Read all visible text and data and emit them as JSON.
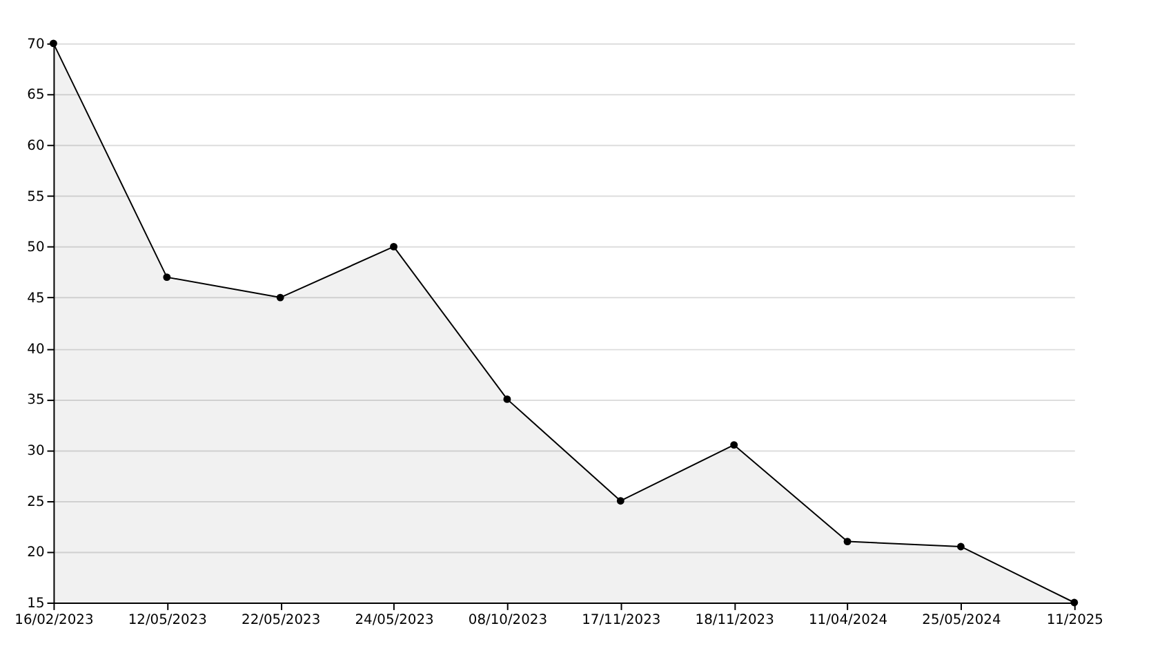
{
  "chart_data": {
    "type": "area",
    "categories": [
      "16/02/2023",
      "12/05/2023",
      "22/05/2023",
      "24/05/2023",
      "08/10/2023",
      "17/11/2023",
      "18/11/2023",
      "11/04/2024",
      "25/05/2024",
      "11/2025"
    ],
    "series": [
      {
        "color": "#000000",
        "values": [
          70,
          47,
          45,
          50,
          35,
          25,
          30.5,
          21,
          20.5,
          15
        ]
      }
    ],
    "ylim": [
      15,
      70
    ],
    "yticks": [
      15,
      20,
      25,
      30,
      35,
      40,
      45,
      50,
      55,
      60,
      65,
      70
    ],
    "grid": "y",
    "marker": "circle",
    "line_style": "solid"
  }
}
